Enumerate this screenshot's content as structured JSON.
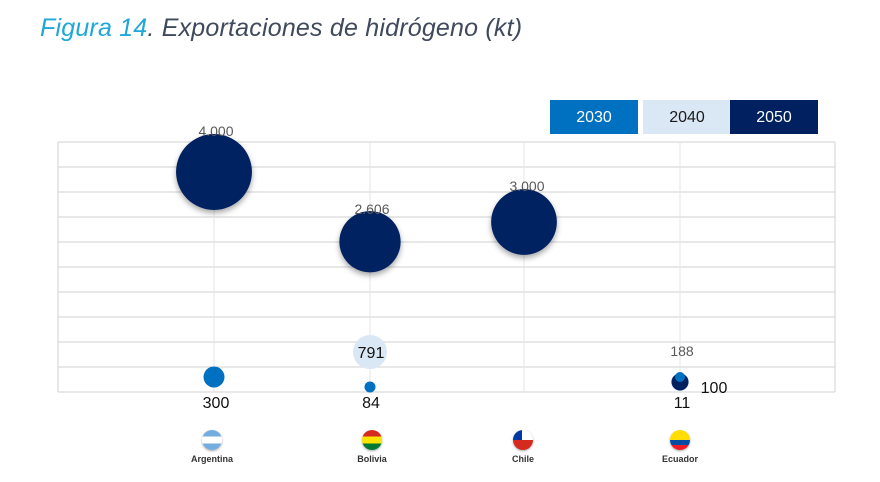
{
  "title": {
    "figure": "Figura 14",
    "text": ". Exportaciones de hidrógeno (kt)"
  },
  "legend": [
    {
      "label": "2030",
      "color": "#0070c0",
      "text_color": "#ffffff"
    },
    {
      "label": "2040",
      "color": "#dae7f4",
      "text_color": "#1a1a1a"
    },
    {
      "label": "2050",
      "color": "#002060",
      "text_color": "#ffffff"
    }
  ],
  "chart_data": {
    "type": "bubble",
    "title": "Figura 14. Exportaciones de hidrógeno (kt)",
    "categories": [
      "Argentina",
      "Bolivia",
      "Chile",
      "Ecuador"
    ],
    "series": [
      {
        "name": "2030",
        "color": "#0070c0",
        "values": [
          300,
          84,
          null,
          11
        ],
        "labels": [
          "300",
          "84",
          null,
          "11"
        ]
      },
      {
        "name": "2040",
        "color": "#dae7f4",
        "values": [
          null,
          791,
          null,
          100
        ],
        "labels": [
          null,
          "791",
          null,
          "100"
        ]
      },
      {
        "name": "2050",
        "color": "#002060",
        "values": [
          4000,
          2606,
          3000,
          188
        ],
        "labels": [
          "4.000",
          "2.606",
          "3.000",
          "188"
        ]
      }
    ],
    "ylim": [
      0,
      5000
    ],
    "grid": true,
    "legend_position": "top-right"
  },
  "countries": [
    {
      "name": "Argentina",
      "flag": "argentina"
    },
    {
      "name": "Bolivia",
      "flag": "bolivia"
    },
    {
      "name": "Chile",
      "flag": "chile"
    },
    {
      "name": "Ecuador",
      "flag": "ecuador"
    }
  ]
}
